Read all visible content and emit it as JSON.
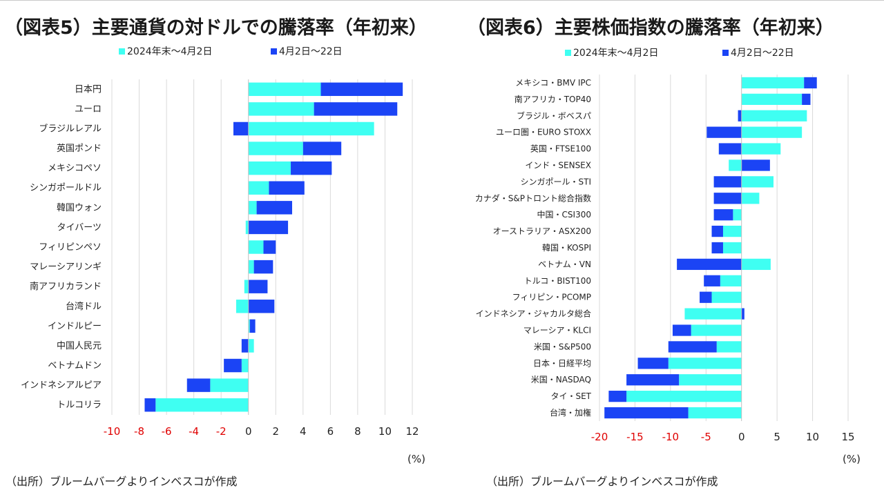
{
  "colors": {
    "series1": "#3ffff2",
    "series2": "#1b44f5",
    "negative_tick": "#e00000",
    "grid": "#d9d9d9"
  },
  "chart_data": [
    {
      "type": "bar",
      "orientation": "horizontal",
      "stacked": true,
      "title": "（図表5）主要通貨の対ドルでの騰落率（年初来）",
      "unit": "(%)",
      "source": "（出所）ブルームバーグよりインベスコが作成",
      "xlim": [
        -10,
        12
      ],
      "xticks": [
        -10,
        -8,
        -6,
        -4,
        -2,
        0,
        2,
        4,
        6,
        8,
        10,
        12
      ],
      "legend_position": "top",
      "categories": [
        "日本円",
        "ユーロ",
        "ブラジルレアル",
        "英国ポンド",
        "メキシコペソ",
        "シンガポールドル",
        "韓国ウォン",
        "タイバーツ",
        "フィリピンペソ",
        "マレーシアリンギ",
        "南アフリカランド",
        "台湾ドル",
        "インドルピー",
        "中国人民元",
        "ベトナムドン",
        "インドネシアルピア",
        "トルコリラ"
      ],
      "series": [
        {
          "name": "2024年末～4月2日",
          "values": [
            5.3,
            4.8,
            9.2,
            4.0,
            3.1,
            1.5,
            0.6,
            -0.2,
            1.1,
            0.4,
            -0.3,
            -0.9,
            0.1,
            0.4,
            -0.5,
            -2.8,
            -6.8
          ]
        },
        {
          "name": "4月2日～22日",
          "values": [
            6.0,
            6.1,
            -1.1,
            2.8,
            3.0,
            2.6,
            2.6,
            2.9,
            0.9,
            1.4,
            1.4,
            1.9,
            0.4,
            -0.5,
            -1.3,
            -1.7,
            -0.8
          ]
        }
      ]
    },
    {
      "type": "bar",
      "orientation": "horizontal",
      "stacked": true,
      "title": "（図表6）主要株価指数の騰落率（年初来）",
      "unit": "(%)",
      "source": "（出所）ブルームバーグよりインベスコが作成",
      "xlim": [
        -20,
        15
      ],
      "xticks": [
        -20,
        -15,
        -10,
        -5,
        0,
        5,
        10,
        15
      ],
      "legend_position": "top",
      "categories": [
        "メキシコ・BMV IPC",
        "南アフリカ・TOP40",
        "ブラジル・ボベスパ",
        "ユーロ圏・EURO STOXX",
        "英国・FTSE100",
        "インド・SENSEX",
        "シンガポール・STI",
        "カナダ・S&Pトロント総合指数",
        "中国・CSI300",
        "オーストラリア・ASX200",
        "韓国・KOSPI",
        "ベトナム・VN",
        "トルコ・BIST100",
        "フィリピン・PCOMP",
        "インドネシア・ジャカルタ総合",
        "マレーシア・KLCI",
        "米国・S&P500",
        "日本・日経平均",
        "米国・NASDAQ",
        "タイ・SET",
        "台湾・加権"
      ],
      "series": [
        {
          "name": "2024年末～4月2日",
          "values": [
            8.8,
            8.5,
            9.2,
            8.5,
            5.5,
            -1.8,
            4.5,
            2.5,
            -1.2,
            -2.6,
            -2.6,
            4.1,
            -3.0,
            -4.2,
            -8.0,
            -7.1,
            -3.5,
            -10.3,
            -8.8,
            -16.2,
            -7.5
          ]
        },
        {
          "name": "4月2日～22日",
          "values": [
            1.8,
            1.2,
            -0.5,
            -4.9,
            -3.2,
            4.0,
            -3.9,
            -3.9,
            -2.7,
            -1.6,
            -1.6,
            -9.1,
            -2.3,
            -1.7,
            0.4,
            -2.6,
            -6.8,
            -4.3,
            -7.4,
            -2.5,
            -11.8
          ]
        }
      ]
    }
  ]
}
